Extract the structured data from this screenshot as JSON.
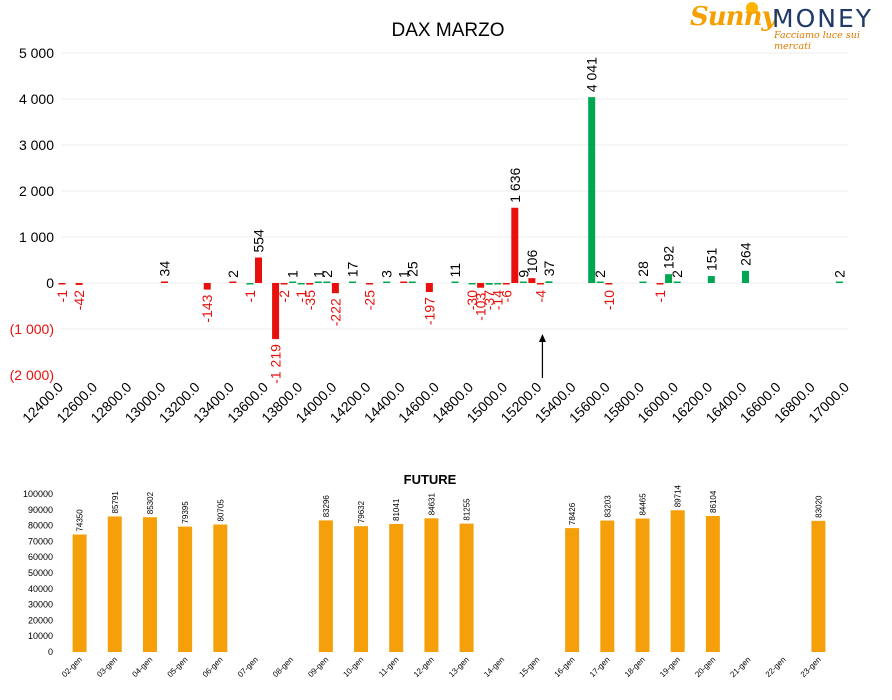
{
  "logo": {
    "name_part1": "Sunny",
    "name_part2": "MONEY",
    "tagline": "Facciamo luce sui mercati"
  },
  "chart_data": [
    {
      "type": "bar",
      "title": "DAX MARZO",
      "x_ticks": [
        "12400.0",
        "12600.0",
        "12800.0",
        "13000.0",
        "13200.0",
        "13400.0",
        "13600.0",
        "13800.0",
        "14000.0",
        "14200.0",
        "14400.0",
        "14600.0",
        "14800.0",
        "15000.0",
        "15200.0",
        "15400.0",
        "15600.0",
        "15800.0",
        "16000.0",
        "16200.0",
        "16400.0",
        "16600.0",
        "16800.0",
        "17000.0"
      ],
      "xlim": [
        12400,
        17000
      ],
      "y_ticks": [
        "5 000",
        "4 000",
        "3 000",
        "2 000",
        "1 000",
        "0",
        "(1 000)",
        "(2 000)"
      ],
      "ylim": [
        -2000,
        5000
      ],
      "grid": true,
      "series": [
        {
          "color": "#e8100c",
          "points": [
            {
              "x": 12400,
              "y": -1,
              "label": "-1"
            },
            {
              "x": 12500,
              "y": -42,
              "label": "-42"
            },
            {
              "x": 13000,
              "y": 34,
              "label": "34"
            },
            {
              "x": 13250,
              "y": -143,
              "label": "-143"
            },
            {
              "x": 13400,
              "y": 2,
              "label": "2"
            },
            {
              "x": 13550,
              "y": 554,
              "label": "554"
            },
            {
              "x": 13650,
              "y": -1219,
              "label": "-1 219"
            },
            {
              "x": 13700,
              "y": -2,
              "label": "-2"
            },
            {
              "x": 13850,
              "y": -35,
              "label": "-35"
            },
            {
              "x": 14000,
              "y": -222,
              "label": "-222"
            },
            {
              "x": 14200,
              "y": -25,
              "label": "-25"
            },
            {
              "x": 14400,
              "y": 1,
              "label": "1"
            },
            {
              "x": 14550,
              "y": -197,
              "label": "-197"
            },
            {
              "x": 14850,
              "y": -103,
              "label": "-103"
            },
            {
              "x": 15000,
              "y": -6,
              "label": "-6"
            },
            {
              "x": 15050,
              "y": 1636,
              "label": "1 636"
            },
            {
              "x": 15150,
              "y": 106,
              "label": "106"
            },
            {
              "x": 15200,
              "y": -4,
              "label": "-4"
            },
            {
              "x": 15600,
              "y": -10,
              "label": "-10"
            },
            {
              "x": 15900,
              "y": -1,
              "label": "-1"
            }
          ]
        },
        {
          "color": "#00a651",
          "points": [
            {
              "x": 13500,
              "y": -1,
              "label": "-1"
            },
            {
              "x": 13750,
              "y": 1,
              "label": "1"
            },
            {
              "x": 13800,
              "y": -1,
              "label": "-1"
            },
            {
              "x": 13900,
              "y": 1,
              "label": "1"
            },
            {
              "x": 13950,
              "y": 2,
              "label": "2"
            },
            {
              "x": 14100,
              "y": 17,
              "label": "17"
            },
            {
              "x": 14300,
              "y": 3,
              "label": "3"
            },
            {
              "x": 14450,
              "y": 25,
              "label": "25"
            },
            {
              "x": 14700,
              "y": 11,
              "label": "11"
            },
            {
              "x": 14800,
              "y": -30,
              "label": "-30"
            },
            {
              "x": 14900,
              "y": -37,
              "label": "-37"
            },
            {
              "x": 14950,
              "y": -14,
              "label": "-14"
            },
            {
              "x": 15100,
              "y": 9,
              "label": "9"
            },
            {
              "x": 15250,
              "y": 37,
              "label": "37"
            },
            {
              "x": 15500,
              "y": 4041,
              "label": "4 041"
            },
            {
              "x": 15550,
              "y": 2,
              "label": "2"
            },
            {
              "x": 15800,
              "y": 28,
              "label": "28"
            },
            {
              "x": 15950,
              "y": 192,
              "label": "192"
            },
            {
              "x": 16000,
              "y": 2,
              "label": "2"
            },
            {
              "x": 16200,
              "y": 151,
              "label": "151"
            },
            {
              "x": 16400,
              "y": 264,
              "label": "264"
            },
            {
              "x": 16950,
              "y": 2,
              "label": "2"
            }
          ]
        }
      ],
      "annotation_arrow_at_x": 15200
    },
    {
      "type": "bar",
      "title": "FUTURE",
      "categories": [
        "02-gen",
        "03-gen",
        "04-gen",
        "05-gen",
        "06-gen",
        "07-gen",
        "08-gen",
        "09-gen",
        "10-gen",
        "11-gen",
        "12-gen",
        "13-gen",
        "14-gen",
        "15-gen",
        "16-gen",
        "17-gen",
        "18-gen",
        "19-gen",
        "20-gen",
        "21-gen",
        "22-gen",
        "23-gen"
      ],
      "values": [
        74350,
        85791,
        85302,
        79395,
        80705,
        null,
        null,
        83296,
        79632,
        81041,
        84631,
        81255,
        null,
        null,
        78426,
        83203,
        84465,
        89714,
        86104,
        null,
        null,
        83020
      ],
      "labels": [
        "74350",
        "85791",
        "85302",
        "79395",
        "80705",
        "",
        "",
        "83296",
        "79632",
        "81041",
        "84631",
        "81255",
        "",
        "",
        "78426",
        "83203",
        "84465",
        "89714",
        "86104",
        "",
        "",
        "83020"
      ],
      "y_ticks": [
        "100000",
        "90000",
        "80000",
        "70000",
        "60000",
        "50000",
        "40000",
        "30000",
        "20000",
        "10000",
        "0"
      ],
      "ylim": [
        0,
        100000
      ],
      "color": "#f5a00a"
    }
  ]
}
